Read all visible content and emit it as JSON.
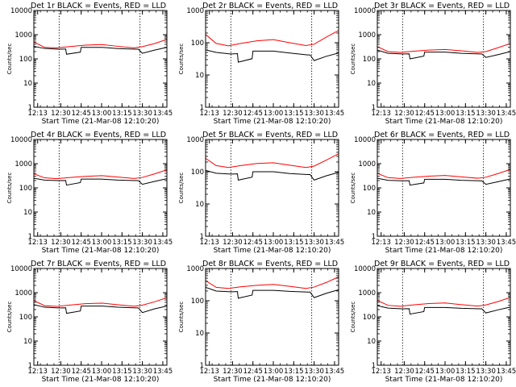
{
  "chart_data": [
    {
      "type": "line",
      "title": "Det 1r BLACK = Events, RED = LLD",
      "xlabel": "Start Time (21-Mar-08 12:10:20)",
      "ylabel": "Counts/sec",
      "yscale": "log",
      "ylim": [
        1,
        10000
      ],
      "xlim": [
        12.17,
        13.8
      ],
      "x_ticks": [
        "12:13",
        "12:30",
        "12:45",
        "13:00",
        "13:15",
        "13:30",
        "13:45"
      ],
      "y_ticks": [
        "1",
        "10",
        "100",
        "1000",
        "10000"
      ],
      "vlines": [
        12.48,
        13.47
      ],
      "series": [
        {
          "color": "#ff0000",
          "x": [
            12.17,
            12.3,
            12.45,
            12.6,
            12.8,
            13.0,
            13.2,
            13.4,
            13.5,
            13.65,
            13.8
          ],
          "y": [
            500,
            300,
            285,
            320,
            370,
            390,
            330,
            285,
            320,
            430,
            640
          ]
        },
        {
          "color": "#000000",
          "x": [
            12.17,
            12.3,
            12.47,
            12.5,
            12.56,
            12.57,
            12.74,
            12.75,
            13.0,
            13.2,
            13.42,
            13.45,
            13.5,
            13.65,
            13.8
          ],
          "y": [
            330,
            270,
            250,
            250,
            255,
            155,
            190,
            300,
            300,
            265,
            250,
            250,
            170,
            230,
            300
          ]
        }
      ]
    },
    {
      "type": "line",
      "title": "Det 2r BLACK = Events, RED = LLD",
      "xlabel": "Start Time (21-Mar-08 12:10:20)",
      "ylabel": "Counts/sec",
      "yscale": "log",
      "ylim": [
        1,
        1000
      ],
      "xlim": [
        12.17,
        13.8
      ],
      "x_ticks": [
        "12:13",
        "12:30",
        "12:45",
        "13:00",
        "13:15",
        "13:30",
        "13:45"
      ],
      "y_ticks": [
        "1",
        "10",
        "100",
        "1000"
      ],
      "vlines": [
        12.48,
        13.47
      ],
      "series": [
        {
          "color": "#ff0000",
          "x": [
            12.17,
            12.3,
            12.45,
            12.6,
            12.8,
            13.0,
            13.2,
            13.4,
            13.5,
            13.65,
            13.8
          ],
          "y": [
            180,
            95,
            80,
            95,
            115,
            125,
            100,
            82,
            90,
            150,
            240
          ]
        },
        {
          "color": "#000000",
          "x": [
            12.17,
            12.3,
            12.47,
            12.5,
            12.56,
            12.57,
            12.74,
            12.75,
            13.0,
            13.2,
            13.42,
            13.45,
            13.5,
            13.65,
            13.8
          ],
          "y": [
            60,
            50,
            45,
            45,
            46,
            25,
            32,
            55,
            55,
            48,
            42,
            42,
            28,
            38,
            48
          ]
        }
      ]
    },
    {
      "type": "line",
      "title": "Det 3r BLACK = Events, RED = LLD",
      "xlabel": "Start Time (21-Mar-08 12:10:20)",
      "ylabel": "Counts/sec",
      "yscale": "log",
      "ylim": [
        1,
        10000
      ],
      "xlim": [
        12.17,
        13.8
      ],
      "x_ticks": [
        "12:13",
        "12:30",
        "12:45",
        "13:00",
        "13:15",
        "13:30",
        "13:45"
      ],
      "y_ticks": [
        "1",
        "10",
        "100",
        "1000",
        "10000"
      ],
      "vlines": [
        12.48,
        13.47
      ],
      "series": [
        {
          "color": "#ff0000",
          "x": [
            12.17,
            12.3,
            12.45,
            12.6,
            12.8,
            13.0,
            13.2,
            13.4,
            13.5,
            13.65,
            13.8
          ],
          "y": [
            320,
            200,
            185,
            205,
            230,
            245,
            215,
            185,
            200,
            290,
            430
          ]
        },
        {
          "color": "#000000",
          "x": [
            12.17,
            12.3,
            12.47,
            12.5,
            12.56,
            12.57,
            12.74,
            12.75,
            13.0,
            13.2,
            13.42,
            13.45,
            13.5,
            13.65,
            13.8
          ],
          "y": [
            230,
            170,
            160,
            160,
            162,
            100,
            130,
            190,
            190,
            170,
            160,
            160,
            115,
            150,
            200
          ]
        }
      ]
    },
    {
      "type": "line",
      "title": "Det 4r BLACK = Events, RED = LLD",
      "xlabel": "Start Time (21-Mar-08 12:10:20)",
      "ylabel": "Counts/sec",
      "yscale": "log",
      "ylim": [
        1,
        10000
      ],
      "xlim": [
        12.17,
        13.8
      ],
      "x_ticks": [
        "12:13",
        "12:30",
        "12:45",
        "13:00",
        "13:15",
        "13:30",
        "13:45"
      ],
      "y_ticks": [
        "1",
        "10",
        "100",
        "1000",
        "10000"
      ],
      "vlines": [
        12.48,
        13.47
      ],
      "series": [
        {
          "color": "#ff0000",
          "x": [
            12.17,
            12.3,
            12.45,
            12.6,
            12.8,
            13.0,
            13.2,
            13.4,
            13.5,
            13.65,
            13.8
          ],
          "y": [
            380,
            260,
            240,
            265,
            300,
            320,
            280,
            245,
            270,
            380,
            560
          ]
        },
        {
          "color": "#000000",
          "x": [
            12.17,
            12.3,
            12.47,
            12.5,
            12.56,
            12.57,
            12.74,
            12.75,
            13.0,
            13.2,
            13.42,
            13.45,
            13.5,
            13.65,
            13.8
          ],
          "y": [
            250,
            210,
            200,
            200,
            202,
            130,
            165,
            230,
            230,
            210,
            200,
            200,
            140,
            185,
            240
          ]
        }
      ]
    },
    {
      "type": "line",
      "title": "Det 5r BLACK = Events, RED = LLD",
      "xlabel": "Start Time (21-Mar-08 12:10:20)",
      "ylabel": "Counts/sec",
      "yscale": "log",
      "ylim": [
        1,
        1000
      ],
      "xlim": [
        12.17,
        13.8
      ],
      "x_ticks": [
        "12:13",
        "12:30",
        "12:45",
        "13:00",
        "13:15",
        "13:30",
        "13:45"
      ],
      "y_ticks": [
        "1",
        "10",
        "100",
        "1000"
      ],
      "vlines": [
        12.48,
        13.47
      ],
      "series": [
        {
          "color": "#ff0000",
          "x": [
            12.17,
            12.3,
            12.45,
            12.6,
            12.8,
            13.0,
            13.2,
            13.4,
            13.5,
            13.65,
            13.8
          ],
          "y": [
            260,
            155,
            135,
            155,
            180,
            190,
            160,
            135,
            150,
            230,
            360
          ]
        },
        {
          "color": "#000000",
          "x": [
            12.17,
            12.3,
            12.47,
            12.5,
            12.56,
            12.57,
            12.74,
            12.75,
            13.0,
            13.2,
            13.42,
            13.45,
            13.5,
            13.65,
            13.8
          ],
          "y": [
            110,
            90,
            85,
            85,
            86,
            55,
            68,
            100,
            100,
            88,
            82,
            82,
            55,
            75,
            95
          ]
        }
      ]
    },
    {
      "type": "line",
      "title": "Det 6r BLACK = Events, RED = LLD",
      "xlabel": "Start Time (21-Mar-08 12:10:20)",
      "ylabel": "Counts/sec",
      "yscale": "log",
      "ylim": [
        1,
        10000
      ],
      "xlim": [
        12.17,
        13.8
      ],
      "x_ticks": [
        "12:13",
        "12:30",
        "12:45",
        "13:00",
        "13:15",
        "13:30",
        "13:45"
      ],
      "y_ticks": [
        "1",
        "10",
        "100",
        "1000",
        "10000"
      ],
      "vlines": [
        12.48,
        13.47
      ],
      "series": [
        {
          "color": "#ff0000",
          "x": [
            12.17,
            12.3,
            12.45,
            12.6,
            12.8,
            13.0,
            13.2,
            13.4,
            13.5,
            13.65,
            13.8
          ],
          "y": [
            400,
            265,
            245,
            270,
            305,
            325,
            285,
            250,
            275,
            390,
            580
          ]
        },
        {
          "color": "#000000",
          "x": [
            12.17,
            12.3,
            12.47,
            12.5,
            12.56,
            12.57,
            12.74,
            12.75,
            13.0,
            13.2,
            13.42,
            13.45,
            13.5,
            13.65,
            13.8
          ],
          "y": [
            250,
            205,
            195,
            195,
            197,
            130,
            160,
            225,
            225,
            205,
            195,
            195,
            140,
            180,
            235
          ]
        }
      ]
    },
    {
      "type": "line",
      "title": "Det 7r BLACK = Events, RED = LLD",
      "xlabel": "Start Time (21-Mar-08 12:10:20)",
      "ylabel": "Counts/sec",
      "yscale": "log",
      "ylim": [
        1,
        10000
      ],
      "xlim": [
        12.17,
        13.8
      ],
      "x_ticks": [
        "12:13",
        "12:30",
        "12:45",
        "13:00",
        "13:15",
        "13:30",
        "13:45"
      ],
      "y_ticks": [
        "1",
        "10",
        "100",
        "1000",
        "10000"
      ],
      "vlines": [
        12.48,
        13.47
      ],
      "series": [
        {
          "color": "#ff0000",
          "x": [
            12.17,
            12.3,
            12.45,
            12.6,
            12.8,
            13.0,
            13.2,
            13.4,
            13.5,
            13.65,
            13.8
          ],
          "y": [
            470,
            290,
            270,
            305,
            350,
            370,
            315,
            275,
            305,
            420,
            620
          ]
        },
        {
          "color": "#000000",
          "x": [
            12.17,
            12.3,
            12.47,
            12.5,
            12.56,
            12.57,
            12.74,
            12.75,
            13.0,
            13.2,
            13.42,
            13.45,
            13.5,
            13.65,
            13.8
          ],
          "y": [
            320,
            250,
            235,
            235,
            238,
            140,
            175,
            280,
            280,
            250,
            235,
            235,
            150,
            215,
            280
          ]
        }
      ]
    },
    {
      "type": "line",
      "title": "Det 8r BLACK = Events, RED = LLD",
      "xlabel": "Start Time (21-Mar-08 12:10:20)",
      "ylabel": "Counts/sec",
      "yscale": "log",
      "ylim": [
        1,
        1000
      ],
      "xlim": [
        12.17,
        13.8
      ],
      "x_ticks": [
        "12:13",
        "12:30",
        "12:45",
        "13:00",
        "13:15",
        "13:30",
        "13:45"
      ],
      "y_ticks": [
        "1",
        "10",
        "100",
        "1000"
      ],
      "vlines": [
        12.48,
        13.47
      ],
      "series": [
        {
          "color": "#ff0000",
          "x": [
            12.17,
            12.3,
            12.45,
            12.6,
            12.8,
            13.0,
            13.2,
            13.4,
            13.5,
            13.65,
            13.8
          ],
          "y": [
            420,
            260,
            240,
            270,
            300,
            320,
            280,
            240,
            265,
            370,
            550
          ]
        },
        {
          "color": "#000000",
          "x": [
            12.17,
            12.3,
            12.47,
            12.5,
            12.56,
            12.57,
            12.74,
            12.75,
            13.0,
            13.2,
            13.42,
            13.45,
            13.5,
            13.65,
            13.8
          ],
          "y": [
            260,
            200,
            190,
            190,
            192,
            120,
            150,
            210,
            210,
            195,
            185,
            185,
            125,
            170,
            220
          ]
        }
      ]
    },
    {
      "type": "line",
      "title": "Det 9r BLACK = Events, RED = LLD",
      "xlabel": "Start Time (21-Mar-08 12:10:20)",
      "ylabel": "Counts/sec",
      "yscale": "log",
      "ylim": [
        1,
        10000
      ],
      "xlim": [
        12.17,
        13.8
      ],
      "x_ticks": [
        "12:13",
        "12:30",
        "12:45",
        "13:00",
        "13:15",
        "13:30",
        "13:45"
      ],
      "y_ticks": [
        "1",
        "10",
        "100",
        "1000",
        "10000"
      ],
      "vlines": [
        12.48,
        13.47
      ],
      "series": [
        {
          "color": "#ff0000",
          "x": [
            12.17,
            12.3,
            12.45,
            12.6,
            12.8,
            13.0,
            13.2,
            13.4,
            13.5,
            13.65,
            13.8
          ],
          "y": [
            480,
            300,
            275,
            310,
            355,
            375,
            320,
            280,
            310,
            430,
            640
          ]
        },
        {
          "color": "#000000",
          "x": [
            12.17,
            12.3,
            12.47,
            12.5,
            12.56,
            12.57,
            12.74,
            12.75,
            13.0,
            13.2,
            13.42,
            13.45,
            13.5,
            13.65,
            13.8
          ],
          "y": [
            290,
            230,
            215,
            215,
            218,
            130,
            165,
            245,
            245,
            225,
            215,
            215,
            145,
            195,
            255
          ]
        }
      ]
    }
  ]
}
